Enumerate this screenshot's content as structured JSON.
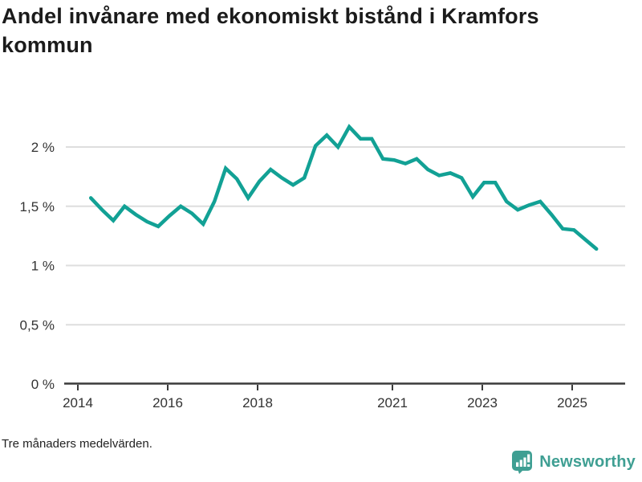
{
  "header": {
    "title": "Andel invånare med ekonomiskt bistånd i Kramfors kommun"
  },
  "footer": {
    "note": "Tre månaders medelvärden."
  },
  "branding": {
    "logo_text": "Newsworthy",
    "logo_color": "#3f9f93"
  },
  "chart_data": {
    "type": "line",
    "title": "Andel invånare med ekonomiskt bistånd i Kramfors kommun",
    "xlabel": "",
    "ylabel": "",
    "note": "Tre månaders medelvärden.",
    "line_color": "#12a195",
    "grid": true,
    "legend_position": "none",
    "xlim": [
      2013.73,
      2026.18
    ],
    "ylim": [
      0,
      2.3
    ],
    "x_ticks": [
      {
        "label": "2014",
        "value": 2014
      },
      {
        "label": "2016",
        "value": 2016
      },
      {
        "label": "2018",
        "value": 2018
      },
      {
        "label": "2021",
        "value": 2021
      },
      {
        "label": "2023",
        "value": 2023
      },
      {
        "label": "2025",
        "value": 2025
      }
    ],
    "y_ticks": [
      {
        "label": "0 %",
        "value": 0
      },
      {
        "label": "0,5 %",
        "value": 0.5
      },
      {
        "label": "1 %",
        "value": 1
      },
      {
        "label": "1,5 %",
        "value": 1.5
      },
      {
        "label": "2 %",
        "value": 2
      }
    ],
    "x": [
      2014.29,
      2014.54,
      2014.79,
      2015.04,
      2015.29,
      2015.54,
      2015.79,
      2016.04,
      2016.29,
      2016.54,
      2016.79,
      2017.04,
      2017.29,
      2017.54,
      2017.79,
      2018.04,
      2018.29,
      2018.54,
      2018.79,
      2019.04,
      2019.29,
      2019.54,
      2019.79,
      2020.04,
      2020.29,
      2020.54,
      2020.79,
      2021.04,
      2021.29,
      2021.54,
      2021.79,
      2022.04,
      2022.29,
      2022.54,
      2022.79,
      2023.04,
      2023.29,
      2023.54,
      2023.79,
      2024.04,
      2024.29,
      2024.54,
      2024.79,
      2025.04,
      2025.29,
      2025.54
    ],
    "values": [
      1.57,
      1.47,
      1.38,
      1.5,
      1.43,
      1.37,
      1.33,
      1.42,
      1.5,
      1.44,
      1.35,
      1.54,
      1.82,
      1.73,
      1.57,
      1.71,
      1.81,
      1.74,
      1.68,
      1.74,
      2.01,
      2.1,
      2.0,
      2.17,
      2.07,
      2.07,
      1.9,
      1.89,
      1.86,
      1.9,
      1.81,
      1.76,
      1.78,
      1.74,
      1.58,
      1.7,
      1.7,
      1.54,
      1.47,
      1.51,
      1.54,
      1.43,
      1.31,
      1.3,
      1.22,
      1.14
    ]
  }
}
